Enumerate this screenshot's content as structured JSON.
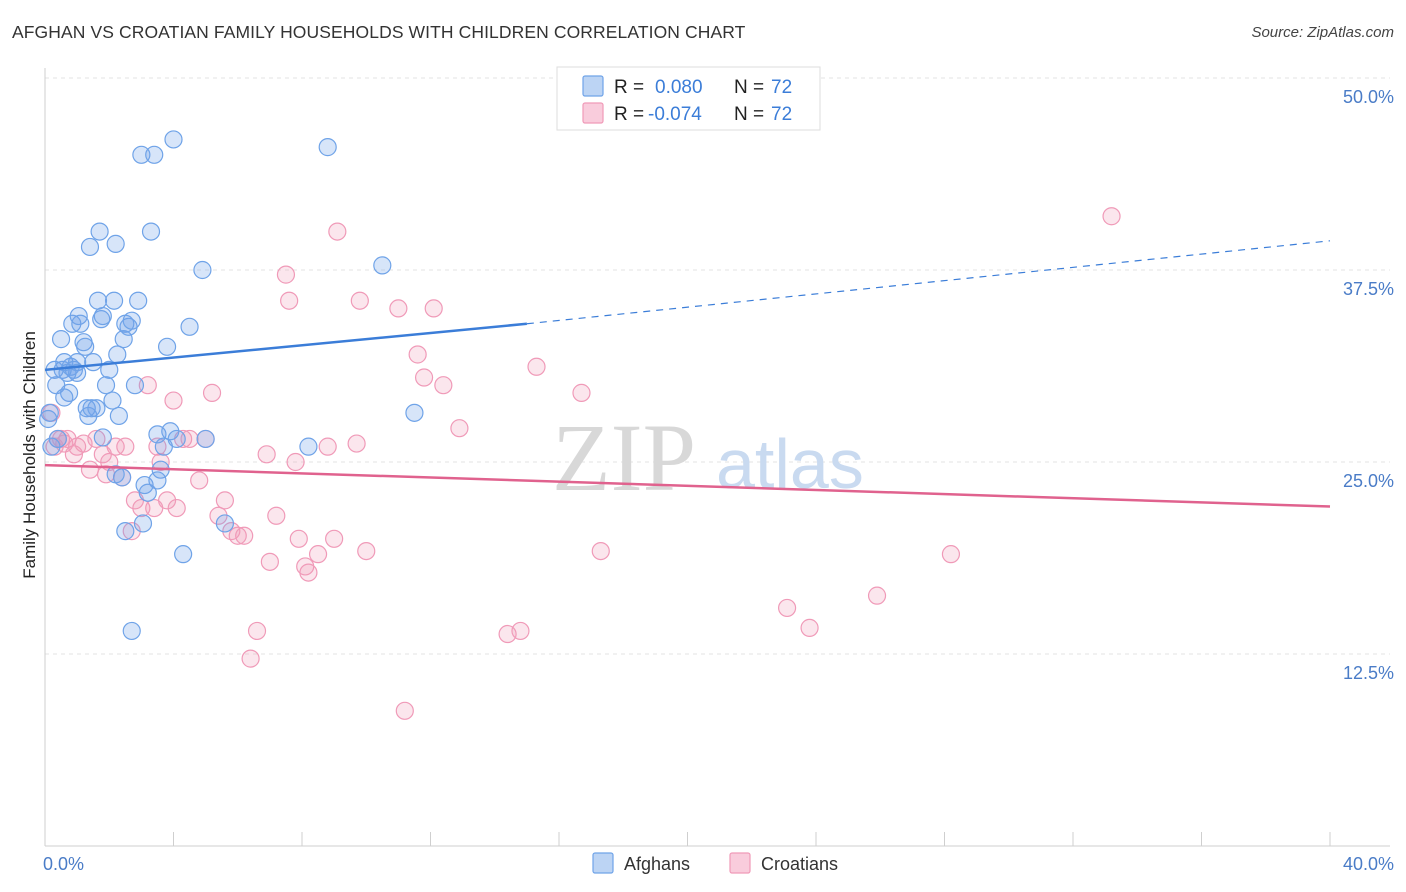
{
  "header": {
    "title": "AFGHAN VS CROATIAN FAMILY HOUSEHOLDS WITH CHILDREN CORRELATION CHART",
    "source": "Source: ZipAtlas.com"
  },
  "watermark": {
    "zip": "ZIP",
    "atlas": "atlas"
  },
  "legend_top": {
    "rows": [
      {
        "r_label": "R =",
        "r_value": "0.080",
        "n_label": "N =",
        "n_value": "72",
        "color": "#6fa3e8"
      },
      {
        "r_label": "R =",
        "r_value": "-0.074",
        "n_label": "N =",
        "n_value": "72",
        "color": "#f09ab8"
      }
    ]
  },
  "legend_bottom": {
    "items": [
      {
        "label": "Afghans",
        "color": "#6fa3e8"
      },
      {
        "label": "Croatians",
        "color": "#f09ab8"
      }
    ]
  },
  "chart_data": {
    "type": "scatter",
    "title": "AFGHAN VS CROATIAN FAMILY HOUSEHOLDS WITH CHILDREN CORRELATION CHART",
    "xlabel": "",
    "ylabel": "Family Households with Children",
    "xlim": [
      0,
      40
    ],
    "ylim": [
      0,
      50
    ],
    "x_tick_labels": [
      "0.0%",
      "40.0%"
    ],
    "y_ticks": [
      12.5,
      25.0,
      37.5,
      50.0
    ],
    "y_tick_labels": [
      "12.5%",
      "25.0%",
      "37.5%",
      "50.0%"
    ],
    "grid": true,
    "colors": {
      "afghans": "#3b7dd8",
      "croatians": "#e0628e",
      "axis_text": "#4a7cc7"
    },
    "series": [
      {
        "name": "Afghans",
        "r": 0.08,
        "n": 72,
        "trend": {
          "x": [
            0,
            15
          ],
          "y": [
            31.0,
            34.0
          ],
          "extend_dashed_to_x": 40,
          "y_at_40": 39.4
        },
        "points": [
          [
            0.1,
            27.8
          ],
          [
            0.15,
            28.2
          ],
          [
            0.2,
            26.0
          ],
          [
            0.3,
            31.0
          ],
          [
            0.35,
            30.0
          ],
          [
            0.4,
            26.5
          ],
          [
            0.5,
            33.0
          ],
          [
            0.55,
            31.0
          ],
          [
            0.6,
            31.5
          ],
          [
            0.7,
            30.8
          ],
          [
            0.75,
            29.5
          ],
          [
            0.8,
            31.2
          ],
          [
            0.85,
            34.0
          ],
          [
            0.9,
            31.0
          ],
          [
            1.0,
            31.5
          ],
          [
            1.05,
            34.5
          ],
          [
            1.1,
            34.0
          ],
          [
            1.2,
            32.8
          ],
          [
            1.25,
            32.5
          ],
          [
            1.3,
            28.5
          ],
          [
            1.35,
            28.0
          ],
          [
            1.4,
            39.0
          ],
          [
            1.45,
            28.5
          ],
          [
            1.5,
            31.5
          ],
          [
            1.6,
            28.5
          ],
          [
            1.65,
            35.5
          ],
          [
            1.7,
            40.0
          ],
          [
            1.75,
            34.3
          ],
          [
            1.8,
            34.5
          ],
          [
            1.9,
            30.0
          ],
          [
            2.0,
            31.0
          ],
          [
            2.1,
            29.0
          ],
          [
            2.15,
            35.5
          ],
          [
            2.2,
            39.2
          ],
          [
            2.25,
            32.0
          ],
          [
            2.3,
            28.0
          ],
          [
            2.4,
            24.0
          ],
          [
            2.45,
            33.0
          ],
          [
            2.5,
            34.0
          ],
          [
            2.6,
            33.8
          ],
          [
            2.7,
            34.2
          ],
          [
            2.8,
            30.0
          ],
          [
            2.9,
            35.5
          ],
          [
            3.0,
            45.0
          ],
          [
            3.05,
            21.0
          ],
          [
            3.1,
            23.5
          ],
          [
            3.2,
            23.0
          ],
          [
            3.3,
            40.0
          ],
          [
            3.4,
            45.0
          ],
          [
            3.5,
            26.8
          ],
          [
            3.6,
            24.5
          ],
          [
            3.7,
            26.0
          ],
          [
            3.8,
            32.5
          ],
          [
            3.9,
            27.0
          ],
          [
            4.0,
            46.0
          ],
          [
            4.1,
            26.5
          ],
          [
            4.3,
            19.0
          ],
          [
            4.5,
            33.8
          ],
          [
            4.9,
            37.5
          ],
          [
            5.0,
            26.5
          ],
          [
            5.6,
            21.0
          ],
          [
            8.2,
            26.0
          ],
          [
            8.8,
            45.5
          ],
          [
            10.5,
            37.8
          ],
          [
            11.5,
            28.2
          ],
          [
            2.5,
            20.5
          ],
          [
            2.7,
            14.0
          ],
          [
            1.0,
            30.8
          ],
          [
            0.6,
            29.2
          ],
          [
            1.8,
            26.6
          ],
          [
            2.2,
            24.2
          ],
          [
            3.5,
            23.8
          ]
        ]
      },
      {
        "name": "Croatians",
        "r": -0.074,
        "n": 72,
        "trend": {
          "x": [
            0,
            40
          ],
          "y": [
            24.8,
            22.1
          ]
        },
        "points": [
          [
            0.2,
            28.2
          ],
          [
            0.3,
            26.0
          ],
          [
            0.4,
            26.5
          ],
          [
            0.5,
            26.5
          ],
          [
            0.6,
            26.2
          ],
          [
            0.7,
            26.5
          ],
          [
            0.9,
            25.5
          ],
          [
            1.0,
            26.0
          ],
          [
            1.2,
            26.2
          ],
          [
            1.4,
            24.5
          ],
          [
            1.6,
            26.5
          ],
          [
            1.8,
            25.5
          ],
          [
            1.9,
            24.2
          ],
          [
            2.0,
            25.0
          ],
          [
            2.2,
            26.0
          ],
          [
            2.4,
            24.0
          ],
          [
            2.5,
            26.0
          ],
          [
            2.7,
            20.5
          ],
          [
            2.8,
            22.5
          ],
          [
            3.0,
            22.0
          ],
          [
            3.2,
            30.0
          ],
          [
            3.4,
            22.0
          ],
          [
            3.5,
            26.0
          ],
          [
            3.6,
            25.0
          ],
          [
            3.8,
            22.5
          ],
          [
            4.0,
            29.0
          ],
          [
            4.1,
            22.0
          ],
          [
            4.3,
            26.5
          ],
          [
            4.5,
            26.5
          ],
          [
            4.8,
            23.8
          ],
          [
            5.0,
            26.5
          ],
          [
            5.2,
            29.5
          ],
          [
            5.4,
            21.5
          ],
          [
            5.6,
            22.5
          ],
          [
            5.8,
            20.5
          ],
          [
            6.0,
            20.2
          ],
          [
            6.2,
            20.2
          ],
          [
            6.4,
            12.2
          ],
          [
            6.6,
            14.0
          ],
          [
            6.9,
            25.5
          ],
          [
            7.0,
            18.5
          ],
          [
            7.2,
            21.5
          ],
          [
            7.5,
            37.2
          ],
          [
            7.6,
            35.5
          ],
          [
            7.8,
            25.0
          ],
          [
            7.9,
            20.0
          ],
          [
            8.1,
            18.2
          ],
          [
            8.2,
            17.8
          ],
          [
            8.5,
            19.0
          ],
          [
            8.8,
            26.0
          ],
          [
            9.0,
            20.0
          ],
          [
            9.1,
            40.0
          ],
          [
            9.7,
            26.2
          ],
          [
            9.8,
            35.5
          ],
          [
            10.0,
            19.2
          ],
          [
            11.0,
            35.0
          ],
          [
            11.2,
            8.8
          ],
          [
            11.6,
            32.0
          ],
          [
            11.8,
            30.5
          ],
          [
            12.1,
            35.0
          ],
          [
            12.4,
            30.0
          ],
          [
            12.9,
            27.2
          ],
          [
            14.4,
            13.8
          ],
          [
            14.8,
            14.0
          ],
          [
            15.3,
            31.2
          ],
          [
            16.7,
            29.5
          ],
          [
            17.3,
            19.2
          ],
          [
            23.1,
            15.5
          ],
          [
            23.8,
            14.2
          ],
          [
            25.9,
            16.3
          ],
          [
            28.2,
            19.0
          ],
          [
            33.2,
            41.0
          ]
        ]
      }
    ]
  }
}
